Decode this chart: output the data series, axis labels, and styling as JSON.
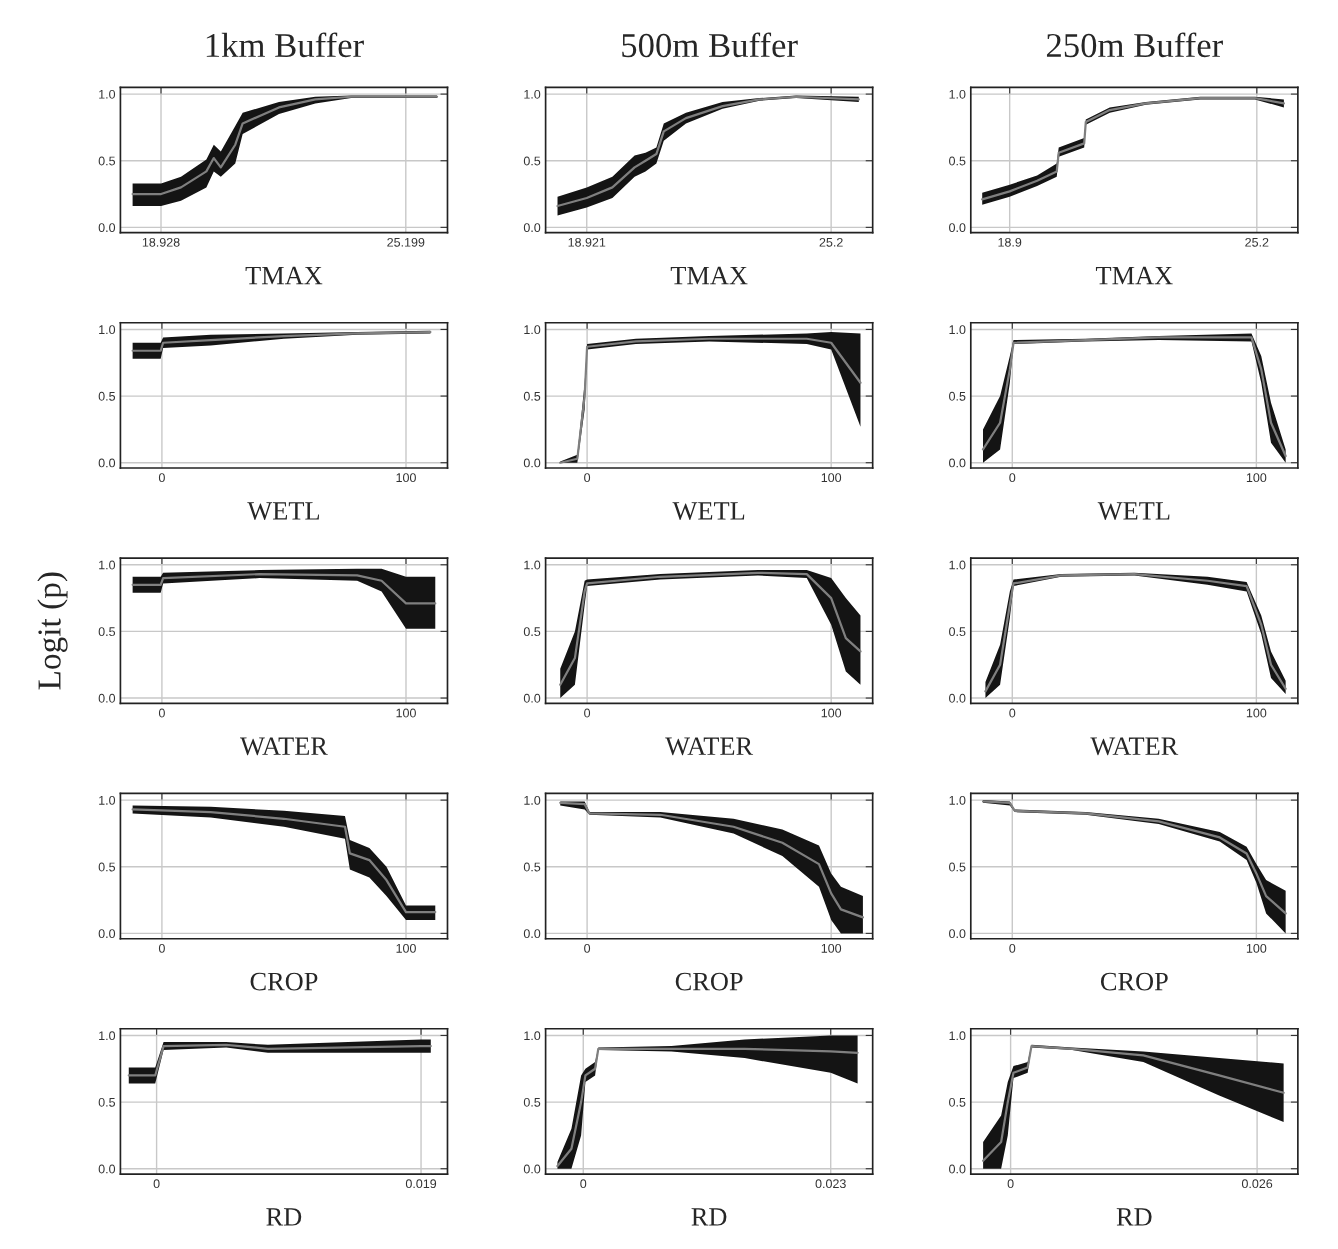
{
  "chart_data": [
    {
      "type": "line",
      "title": "1km Buffer",
      "xlabel": "TMAX",
      "xlim": [
        17.888,
        26.267
      ],
      "xticks": [
        18.928,
        25.199
      ],
      "ylim": [
        -0.04,
        1.05
      ],
      "yticks": [
        {
          "value": 0,
          "label": "0.0"
        },
        {
          "value": 0.5,
          "label": "0.5"
        },
        {
          "value": 1,
          "label": "1.0"
        }
      ],
      "grid": true,
      "series": [
        {
          "color": "#7f7f7f",
          "x": [
            18.2,
            18.93,
            19.44,
            20.09,
            20.28,
            20.46,
            20.83,
            21.02,
            21.95,
            22.88,
            23.8,
            26.0
          ],
          "values": [
            0.25,
            0.25,
            0.3,
            0.42,
            0.52,
            0.45,
            0.62,
            0.78,
            0.9,
            0.96,
            0.98,
            0.98
          ],
          "lower": [
            0.16,
            0.16,
            0.2,
            0.3,
            0.42,
            0.38,
            0.48,
            0.7,
            0.85,
            0.93,
            0.97,
            0.97
          ],
          "upper": [
            0.33,
            0.33,
            0.38,
            0.51,
            0.62,
            0.57,
            0.76,
            0.86,
            0.94,
            0.98,
            0.99,
            0.99
          ]
        }
      ]
    },
    {
      "type": "line",
      "title": "500m Buffer",
      "xlabel": "TMAX",
      "xlim": [
        17.864,
        26.267
      ],
      "xticks": [
        18.921,
        25.2
      ],
      "ylim": [
        -0.04,
        1.05
      ],
      "yticks": [
        {
          "value": 0,
          "label": "0.0"
        },
        {
          "value": 0.5,
          "label": "0.5"
        },
        {
          "value": 1,
          "label": "1.0"
        }
      ],
      "grid": true,
      "series": [
        {
          "color": "#7f7f7f",
          "x": [
            18.17,
            18.92,
            19.58,
            20.15,
            20.43,
            20.71,
            20.9,
            21.47,
            22.41,
            23.36,
            24.3,
            25.91
          ],
          "values": [
            0.16,
            0.22,
            0.3,
            0.45,
            0.5,
            0.55,
            0.72,
            0.82,
            0.91,
            0.96,
            0.98,
            0.96
          ],
          "lower": [
            0.09,
            0.15,
            0.22,
            0.38,
            0.42,
            0.48,
            0.65,
            0.78,
            0.89,
            0.95,
            0.97,
            0.94
          ],
          "upper": [
            0.23,
            0.3,
            0.38,
            0.54,
            0.56,
            0.6,
            0.78,
            0.86,
            0.94,
            0.97,
            0.99,
            0.98
          ]
        }
      ]
    },
    {
      "type": "line",
      "title": "250m Buffer",
      "xlabel": "TMAX",
      "xlim": [
        17.909,
        26.246
      ],
      "xticks": [
        18.9,
        25.2
      ],
      "ylim": [
        -0.04,
        1.05
      ],
      "yticks": [
        {
          "value": 0,
          "label": "0.0"
        },
        {
          "value": 0.5,
          "label": "0.5"
        },
        {
          "value": 1,
          "label": "1.0"
        }
      ],
      "grid": true,
      "series": [
        {
          "color": "#7f7f7f",
          "x": [
            18.2,
            18.9,
            19.6,
            20.1,
            20.15,
            20.8,
            20.84,
            21.45,
            22.37,
            23.76,
            25.15,
            25.89
          ],
          "values": [
            0.21,
            0.27,
            0.35,
            0.42,
            0.56,
            0.63,
            0.79,
            0.88,
            0.93,
            0.97,
            0.97,
            0.93
          ],
          "lower": [
            0.17,
            0.23,
            0.31,
            0.38,
            0.53,
            0.6,
            0.77,
            0.86,
            0.92,
            0.96,
            0.96,
            0.9
          ],
          "upper": [
            0.26,
            0.32,
            0.39,
            0.48,
            0.6,
            0.67,
            0.81,
            0.9,
            0.94,
            0.98,
            0.98,
            0.96
          ]
        }
      ]
    },
    {
      "type": "line",
      "xlabel": "WETL",
      "xlim": [
        -17,
        117
      ],
      "xticks": [
        0,
        100
      ],
      "ylim": [
        -0.04,
        1.05
      ],
      "yticks": [
        {
          "value": 0,
          "label": "0.0"
        },
        {
          "value": 0.5,
          "label": "0.5"
        },
        {
          "value": 1,
          "label": "1.0"
        }
      ],
      "grid": true,
      "series": [
        {
          "color": "#7f7f7f",
          "x": [
            -12,
            -0.5,
            0.5,
            20,
            50,
            80,
            110
          ],
          "values": [
            0.84,
            0.84,
            0.9,
            0.92,
            0.95,
            0.97,
            0.98
          ],
          "lower": [
            0.78,
            0.78,
            0.86,
            0.88,
            0.93,
            0.96,
            0.97
          ],
          "upper": [
            0.9,
            0.9,
            0.94,
            0.96,
            0.97,
            0.98,
            0.99
          ]
        }
      ]
    },
    {
      "type": "line",
      "xlabel": "WETL",
      "xlim": [
        -17,
        117
      ],
      "xticks": [
        0,
        100
      ],
      "ylim": [
        -0.04,
        1.05
      ],
      "yticks": [
        {
          "value": 0,
          "label": "0.0"
        },
        {
          "value": 0.5,
          "label": "0.5"
        },
        {
          "value": 1,
          "label": "1.0"
        }
      ],
      "grid": true,
      "series": [
        {
          "color": "#7f7f7f",
          "x": [
            -11,
            -4,
            -1,
            0,
            20,
            50,
            90,
            100,
            112
          ],
          "values": [
            0.0,
            0.03,
            0.5,
            0.87,
            0.91,
            0.93,
            0.93,
            0.9,
            0.6
          ],
          "lower": [
            0.0,
            0.0,
            0.4,
            0.85,
            0.89,
            0.91,
            0.89,
            0.85,
            0.27
          ],
          "upper": [
            0.01,
            0.06,
            0.6,
            0.89,
            0.93,
            0.95,
            0.97,
            0.98,
            0.97
          ]
        }
      ]
    },
    {
      "type": "line",
      "xlabel": "WETL",
      "xlim": [
        -17,
        117
      ],
      "xticks": [
        0,
        100
      ],
      "ylim": [
        -0.04,
        1.05
      ],
      "yticks": [
        {
          "value": 0,
          "label": "0.0"
        },
        {
          "value": 0.5,
          "label": "0.5"
        },
        {
          "value": 1,
          "label": "1.0"
        }
      ],
      "grid": true,
      "series": [
        {
          "color": "#7f7f7f",
          "x": [
            -12,
            -5,
            -1,
            0.5,
            30,
            60,
            98,
            102,
            106,
            112
          ],
          "values": [
            0.1,
            0.3,
            0.7,
            0.9,
            0.92,
            0.94,
            0.94,
            0.7,
            0.3,
            0.05
          ],
          "lower": [
            0.0,
            0.1,
            0.6,
            0.89,
            0.91,
            0.92,
            0.91,
            0.6,
            0.15,
            0.0
          ],
          "upper": [
            0.25,
            0.5,
            0.8,
            0.92,
            0.93,
            0.95,
            0.97,
            0.8,
            0.45,
            0.1
          ]
        }
      ]
    },
    {
      "type": "line",
      "xlabel": "WATER",
      "ylabel": "Logit (p)",
      "xlim": [
        -17,
        117
      ],
      "xticks": [
        0,
        100
      ],
      "ylim": [
        -0.04,
        1.05
      ],
      "yticks": [
        {
          "value": 0,
          "label": "0.0"
        },
        {
          "value": 0.5,
          "label": "0.5"
        },
        {
          "value": 1,
          "label": "1.0"
        }
      ],
      "grid": true,
      "series": [
        {
          "color": "#7f7f7f",
          "x": [
            -12,
            -0.5,
            0.5,
            40,
            80,
            90,
            100,
            112
          ],
          "values": [
            0.85,
            0.85,
            0.9,
            0.93,
            0.92,
            0.88,
            0.71,
            0.71
          ],
          "lower": [
            0.79,
            0.79,
            0.86,
            0.9,
            0.88,
            0.8,
            0.52,
            0.52
          ],
          "upper": [
            0.91,
            0.91,
            0.94,
            0.96,
            0.97,
            0.97,
            0.91,
            0.91
          ]
        }
      ]
    },
    {
      "type": "line",
      "xlabel": "WATER",
      "xlim": [
        -17,
        117
      ],
      "xticks": [
        0,
        100
      ],
      "ylim": [
        -0.04,
        1.05
      ],
      "yticks": [
        {
          "value": 0,
          "label": "0.0"
        },
        {
          "value": 0.5,
          "label": "0.5"
        },
        {
          "value": 1,
          "label": "1.0"
        }
      ],
      "grid": true,
      "series": [
        {
          "color": "#7f7f7f",
          "x": [
            -11,
            -5,
            -1,
            0,
            30,
            70,
            90,
            100,
            106,
            112
          ],
          "values": [
            0.1,
            0.3,
            0.8,
            0.86,
            0.91,
            0.94,
            0.93,
            0.75,
            0.45,
            0.35
          ],
          "lower": [
            0.0,
            0.1,
            0.7,
            0.84,
            0.89,
            0.92,
            0.9,
            0.55,
            0.2,
            0.1
          ],
          "upper": [
            0.22,
            0.5,
            0.88,
            0.89,
            0.93,
            0.96,
            0.96,
            0.9,
            0.75,
            0.62
          ]
        }
      ]
    },
    {
      "type": "line",
      "xlabel": "WATER",
      "xlim": [
        -17,
        117
      ],
      "xticks": [
        0,
        100
      ],
      "ylim": [
        -0.04,
        1.05
      ],
      "yticks": [
        {
          "value": 0,
          "label": "0.0"
        },
        {
          "value": 0.5,
          "label": "0.5"
        },
        {
          "value": 1,
          "label": "1.0"
        }
      ],
      "grid": true,
      "series": [
        {
          "color": "#7f7f7f",
          "x": [
            -11,
            -5,
            -1,
            0.5,
            20,
            50,
            80,
            96,
            102,
            106,
            112
          ],
          "values": [
            0.05,
            0.25,
            0.7,
            0.86,
            0.92,
            0.93,
            0.88,
            0.84,
            0.55,
            0.25,
            0.07
          ],
          "lower": [
            0.0,
            0.1,
            0.6,
            0.84,
            0.91,
            0.92,
            0.85,
            0.8,
            0.48,
            0.15,
            0.03
          ],
          "upper": [
            0.12,
            0.4,
            0.8,
            0.89,
            0.93,
            0.94,
            0.91,
            0.87,
            0.62,
            0.35,
            0.13
          ]
        }
      ]
    },
    {
      "type": "line",
      "xlabel": "CROP",
      "xlim": [
        -17,
        117
      ],
      "xticks": [
        0,
        100
      ],
      "ylim": [
        -0.04,
        1.05
      ],
      "yticks": [
        {
          "value": 0,
          "label": "0.0"
        },
        {
          "value": 0.5,
          "label": "0.5"
        },
        {
          "value": 1,
          "label": "1.0"
        }
      ],
      "grid": true,
      "series": [
        {
          "color": "#7f7f7f",
          "x": [
            -12,
            20,
            50,
            75,
            77,
            85,
            92,
            100,
            112
          ],
          "values": [
            0.93,
            0.91,
            0.86,
            0.8,
            0.6,
            0.55,
            0.4,
            0.16,
            0.16
          ],
          "lower": [
            0.9,
            0.87,
            0.8,
            0.71,
            0.48,
            0.42,
            0.28,
            0.1,
            0.1
          ],
          "upper": [
            0.96,
            0.95,
            0.92,
            0.88,
            0.7,
            0.64,
            0.5,
            0.21,
            0.21
          ]
        }
      ]
    },
    {
      "type": "line",
      "xlabel": "CROP",
      "xlim": [
        -17,
        117
      ],
      "xticks": [
        0,
        100
      ],
      "ylim": [
        -0.04,
        1.05
      ],
      "yticks": [
        {
          "value": 0,
          "label": "0.0"
        },
        {
          "value": 0.5,
          "label": "0.5"
        },
        {
          "value": 1,
          "label": "1.0"
        }
      ],
      "grid": true,
      "series": [
        {
          "color": "#7f7f7f",
          "x": [
            -11,
            -1,
            1,
            30,
            60,
            80,
            95,
            100,
            104,
            113
          ],
          "values": [
            0.98,
            0.97,
            0.9,
            0.89,
            0.8,
            0.68,
            0.52,
            0.3,
            0.18,
            0.12
          ],
          "lower": [
            0.96,
            0.93,
            0.89,
            0.87,
            0.75,
            0.58,
            0.35,
            0.1,
            0.0,
            0.0
          ],
          "upper": [
            0.99,
            0.99,
            0.91,
            0.91,
            0.86,
            0.78,
            0.66,
            0.45,
            0.35,
            0.28
          ]
        }
      ]
    },
    {
      "type": "line",
      "xlabel": "CROP",
      "xlim": [
        -17,
        117
      ],
      "xticks": [
        0,
        100
      ],
      "ylim": [
        -0.04,
        1.05
      ],
      "yticks": [
        {
          "value": 0,
          "label": "0.0"
        },
        {
          "value": 0.5,
          "label": "0.5"
        },
        {
          "value": 1,
          "label": "1.0"
        }
      ],
      "grid": true,
      "series": [
        {
          "color": "#7f7f7f",
          "x": [
            -12,
            -1,
            1,
            30,
            60,
            85,
            96,
            100,
            104,
            112
          ],
          "values": [
            0.99,
            0.98,
            0.92,
            0.9,
            0.84,
            0.72,
            0.6,
            0.45,
            0.28,
            0.15
          ],
          "lower": [
            0.98,
            0.96,
            0.91,
            0.89,
            0.82,
            0.69,
            0.55,
            0.38,
            0.15,
            0.0
          ],
          "upper": [
            1.0,
            0.99,
            0.93,
            0.91,
            0.86,
            0.76,
            0.65,
            0.52,
            0.4,
            0.32
          ]
        }
      ]
    },
    {
      "type": "line",
      "xlabel": "RD",
      "xlim": [
        -0.0026,
        0.0209
      ],
      "xticks": [
        0,
        0.019
      ],
      "ylim": [
        -0.04,
        1.05
      ],
      "yticks": [
        {
          "value": 0,
          "label": "0.0"
        },
        {
          "value": 0.5,
          "label": "0.5"
        },
        {
          "value": 1,
          "label": "1.0"
        }
      ],
      "grid": true,
      "series": [
        {
          "color": "#7f7f7f",
          "x": [
            -0.002,
            -0.0001,
            0.0005,
            0.005,
            0.008,
            0.019,
            0.0197
          ],
          "values": [
            0.7,
            0.7,
            0.92,
            0.93,
            0.9,
            0.92,
            0.92
          ],
          "lower": [
            0.64,
            0.64,
            0.89,
            0.91,
            0.87,
            0.87,
            0.87
          ],
          "upper": [
            0.76,
            0.76,
            0.95,
            0.95,
            0.93,
            0.97,
            0.97
          ]
        }
      ]
    },
    {
      "type": "line",
      "xlabel": "RD",
      "xlim": [
        -0.0035,
        0.0269
      ],
      "xticks": [
        0,
        0.023
      ],
      "ylim": [
        -0.04,
        1.05
      ],
      "yticks": [
        {
          "value": 0,
          "label": "0.0"
        },
        {
          "value": 0.5,
          "label": "0.5"
        },
        {
          "value": 1,
          "label": "1.0"
        }
      ],
      "grid": true,
      "series": [
        {
          "color": "#7f7f7f",
          "x": [
            -0.0024,
            -0.0011,
            -0.0002,
            0.0002,
            0.0011,
            0.0014,
            0.0082,
            0.015,
            0.023,
            0.0255
          ],
          "values": [
            0.02,
            0.15,
            0.5,
            0.7,
            0.75,
            0.9,
            0.9,
            0.9,
            0.88,
            0.87
          ],
          "lower": [
            0.0,
            0.0,
            0.25,
            0.65,
            0.7,
            0.89,
            0.88,
            0.83,
            0.72,
            0.64
          ],
          "upper": [
            0.05,
            0.3,
            0.7,
            0.75,
            0.8,
            0.91,
            0.92,
            0.97,
            1.0,
            1.0
          ]
        }
      ]
    },
    {
      "type": "line",
      "xlabel": "RD",
      "xlim": [
        -0.0042,
        0.0303
      ],
      "xticks": [
        0,
        0.026
      ],
      "ylim": [
        -0.04,
        1.05
      ],
      "yticks": [
        {
          "value": 0,
          "label": "0.0"
        },
        {
          "value": 0.5,
          "label": "0.5"
        },
        {
          "value": 1,
          "label": "1.0"
        }
      ],
      "grid": true,
      "series": [
        {
          "color": "#7f7f7f",
          "x": [
            -0.0029,
            -0.001,
            -0.0003,
            0.0003,
            0.0018,
            0.0022,
            0.0065,
            0.014,
            0.022,
            0.0288
          ],
          "values": [
            0.06,
            0.2,
            0.5,
            0.72,
            0.76,
            0.92,
            0.9,
            0.85,
            0.7,
            0.57
          ],
          "lower": [
            0.0,
            0.0,
            0.25,
            0.68,
            0.72,
            0.91,
            0.89,
            0.8,
            0.55,
            0.35
          ],
          "upper": [
            0.2,
            0.4,
            0.65,
            0.77,
            0.8,
            0.93,
            0.91,
            0.88,
            0.83,
            0.79
          ]
        }
      ]
    }
  ]
}
